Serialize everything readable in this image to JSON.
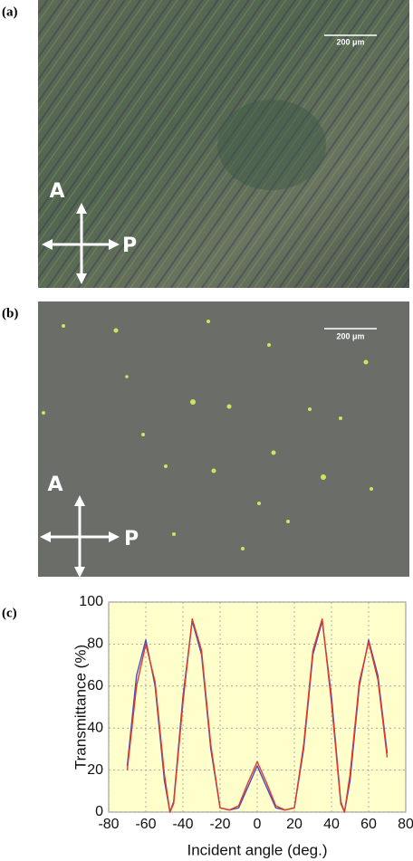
{
  "panels": [
    {
      "label": "(a)",
      "scale_bar": "200 μm",
      "analyzer": "A",
      "polarizer": "P"
    },
    {
      "label": "(b)",
      "scale_bar": "200 μm",
      "analyzer": "A",
      "polarizer": "P"
    },
    {
      "label": "(c)"
    }
  ],
  "chart_data": {
    "type": "line",
    "xlabel": "Incident angle (deg.)",
    "ylabel": "Transmittance (%)",
    "x": [
      -70,
      -65,
      -60,
      -55,
      -50,
      -47,
      -45,
      -40,
      -35,
      -30,
      -25,
      -20,
      -15,
      -10,
      -5,
      0,
      5,
      10,
      15,
      20,
      25,
      30,
      35,
      40,
      45,
      47,
      50,
      55,
      60,
      65,
      70
    ],
    "series": [
      {
        "color": "#4a4ac8",
        "values": [
          22,
          65,
          82,
          60,
          15,
          0,
          5,
          55,
          91,
          75,
          30,
          2,
          1,
          2,
          12,
          22,
          12,
          2,
          1,
          2,
          30,
          75,
          91,
          55,
          5,
          0,
          15,
          60,
          82,
          65,
          28
        ]
      },
      {
        "color": "#e03a2a",
        "values": [
          20,
          60,
          80,
          62,
          18,
          0,
          4,
          52,
          92,
          77,
          32,
          2,
          1,
          3,
          14,
          24,
          14,
          3,
          1,
          2,
          32,
          77,
          92,
          52,
          4,
          0,
          18,
          62,
          81,
          63,
          26
        ]
      }
    ],
    "xlim": [
      -80,
      80
    ],
    "ylim": [
      0,
      100
    ],
    "xticks": [
      -80,
      -60,
      -40,
      -20,
      0,
      20,
      40,
      60,
      80
    ],
    "yticks": [
      0,
      20,
      40,
      60,
      80,
      100
    ],
    "grid": true
  }
}
